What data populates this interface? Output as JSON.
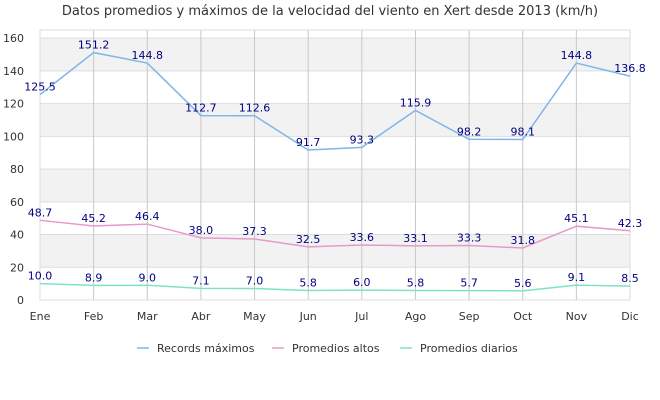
{
  "chart_data": {
    "type": "line",
    "title": "Datos promedios y máximos de la velocidad del viento en Xert desde  2013 (km/h)",
    "categories": [
      "Ene",
      "Feb",
      "Mar",
      "Abr",
      "May",
      "Jun",
      "Jul",
      "Ago",
      "Sep",
      "Oct",
      "Nov",
      "Dic"
    ],
    "ylim": [
      0,
      165
    ],
    "yticks": [
      0,
      20,
      40,
      60,
      80,
      100,
      120,
      140,
      160
    ],
    "grid": true,
    "legend_position": "bottom",
    "series": [
      {
        "name": "Records máximos",
        "color": "#7eb6ea",
        "values": [
          125.5,
          151.2,
          144.8,
          112.7,
          112.6,
          91.7,
          93.3,
          115.9,
          98.2,
          98.1,
          144.8,
          136.8
        ],
        "labels": [
          "125.5",
          "151.2",
          "144.8",
          "112.7",
          "112.6",
          "91.7",
          "93.3",
          "115.9",
          "98.2",
          "98.1",
          "144.8",
          "136.8"
        ]
      },
      {
        "name": "Promedios altos",
        "color": "#e79ac9",
        "values": [
          48.7,
          45.2,
          46.4,
          38.0,
          37.3,
          32.5,
          33.6,
          33.1,
          33.3,
          31.8,
          45.1,
          42.3
        ],
        "labels": [
          "48.7",
          "45.2",
          "46.4",
          "38.0",
          "37.3",
          "32.5",
          "33.6",
          "33.1",
          "33.3",
          "31.8",
          "45.1",
          "42.3"
        ]
      },
      {
        "name": "Promedios diarios",
        "color": "#7ee3c6",
        "values": [
          10.0,
          8.9,
          9.0,
          7.1,
          7.0,
          5.8,
          6.0,
          5.8,
          5.7,
          5.6,
          9.1,
          8.5
        ],
        "labels": [
          "10.0",
          "8.9",
          "9.0",
          "7.1",
          "7.0",
          "5.8",
          "6.0",
          "5.8",
          "5.7",
          "5.6",
          "9.1",
          "8.5"
        ]
      }
    ]
  }
}
